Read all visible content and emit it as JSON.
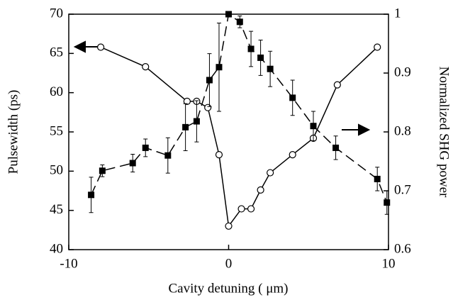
{
  "chart_data": {
    "type": "line",
    "xlabel": "Cavity detuning ( μm)",
    "ylabel": "Pulsewidth (ps)",
    "y2label": "Normalized SHG power",
    "xlim": [
      -10,
      10
    ],
    "xticks": [
      -10,
      0,
      10
    ],
    "ylim": [
      40,
      70
    ],
    "yticks": [
      40,
      45,
      50,
      55,
      60,
      65,
      70
    ],
    "y2lim": [
      0.6,
      1
    ],
    "y2ticks": [
      0.6,
      0.7,
      0.8,
      0.9,
      1
    ],
    "series": [
      {
        "color": "#000000",
        "marker": "circle-open",
        "dash": false,
        "x": [
          -8,
          -5.2,
          -2.6,
          -2.0,
          -1.3,
          -0.6,
          0,
          0.8,
          1.4,
          2.0,
          2.6,
          4.0,
          5.3,
          6.8,
          9.3
        ],
        "values": [
          65.8,
          63.3,
          58.9,
          58.9,
          58.1,
          52.1,
          43.0,
          45.2,
          45.2,
          47.6,
          49.8,
          52.1,
          54.2,
          61.0,
          65.8
        ]
      },
      {
        "color": "#000000",
        "marker": "square-filled",
        "dash": true,
        "axis": "y2",
        "x": [
          -8.6,
          -7.9,
          -6.0,
          -5.2,
          -3.8,
          -2.7,
          -2.0,
          -1.2,
          -0.6,
          0,
          0.7,
          1.4,
          2.0,
          2.6,
          4.0,
          5.3,
          6.7,
          9.3,
          9.9
        ],
        "values": [
          0.693,
          0.734,
          0.747,
          0.773,
          0.76,
          0.808,
          0.818,
          0.888,
          0.91,
          1.0,
          0.987,
          0.941,
          0.926,
          0.907,
          0.858,
          0.81,
          0.773,
          0.72,
          0.68
        ],
        "errors": [
          0.03,
          0.01,
          0.015,
          0.015,
          0.03,
          0.04,
          0.035,
          0.045,
          0.075,
          0.0,
          0.01,
          0.03,
          0.03,
          0.03,
          0.03,
          0.025,
          0.02,
          0.02,
          0.02
        ]
      }
    ]
  }
}
